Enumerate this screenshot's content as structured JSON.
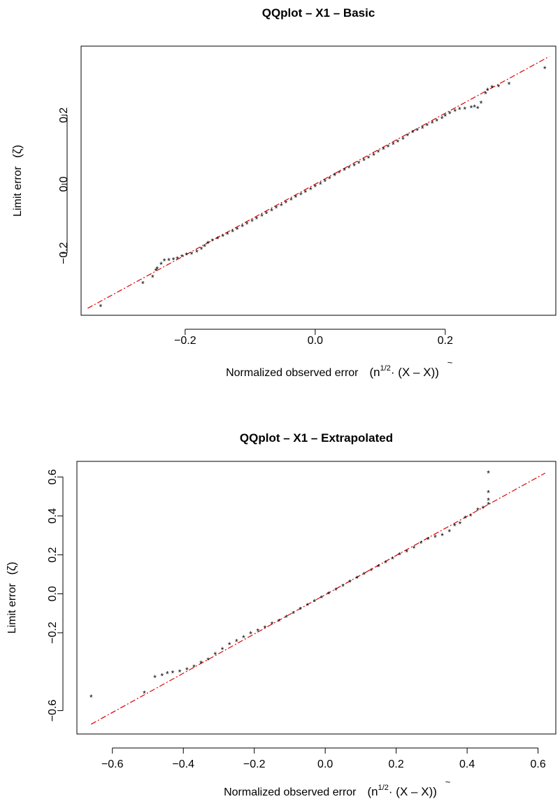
{
  "chart_data": [
    {
      "type": "scatter",
      "title": "QQplot – X1 – Basic",
      "xlabel": "Normalized observed error",
      "xlabel_math": {
        "open": "(n",
        "sup": "1/2",
        "mid": "· (X – ",
        "tilde": "X",
        "close": "))"
      },
      "ylabel": "Limit error",
      "ylabel_symbol": "(ζ)",
      "xlim": [
        -0.36,
        0.37
      ],
      "ylim": [
        -0.38,
        0.4
      ],
      "x_ticks": [
        -0.2,
        0.0,
        0.2
      ],
      "x_tick_labels": [
        "−0.2",
        "0.0",
        "0.2"
      ],
      "y_ticks": [
        -0.2,
        0.0,
        0.2
      ],
      "y_tick_labels": [
        "−0.2",
        "0.0",
        "0.2"
      ],
      "grid": false,
      "reference_line": {
        "from": [
          -0.35,
          -0.36
        ],
        "to": [
          0.36,
          0.37
        ],
        "color": "#dd0000",
        "style": "dash-dot"
      },
      "points_color": "#000000",
      "points": [
        [
          -0.33,
          -0.355
        ],
        [
          -0.265,
          -0.288
        ],
        [
          -0.25,
          -0.27
        ],
        [
          -0.245,
          -0.25
        ],
        [
          -0.243,
          -0.245
        ],
        [
          -0.237,
          -0.232
        ],
        [
          -0.232,
          -0.222
        ],
        [
          -0.225,
          -0.221
        ],
        [
          -0.218,
          -0.219
        ],
        [
          -0.212,
          -0.216
        ],
        [
          -0.205,
          -0.21
        ],
        [
          -0.198,
          -0.205
        ],
        [
          -0.19,
          -0.203
        ],
        [
          -0.182,
          -0.197
        ],
        [
          -0.175,
          -0.189
        ],
        [
          -0.17,
          -0.18
        ],
        [
          -0.165,
          -0.171
        ],
        [
          -0.158,
          -0.164
        ],
        [
          -0.15,
          -0.158
        ],
        [
          -0.142,
          -0.151
        ],
        [
          -0.135,
          -0.145
        ],
        [
          -0.127,
          -0.138
        ],
        [
          -0.12,
          -0.131
        ],
        [
          -0.112,
          -0.123
        ],
        [
          -0.105,
          -0.116
        ],
        [
          -0.097,
          -0.107
        ],
        [
          -0.09,
          -0.1
        ],
        [
          -0.082,
          -0.092
        ],
        [
          -0.075,
          -0.085
        ],
        [
          -0.067,
          -0.077
        ],
        [
          -0.06,
          -0.069
        ],
        [
          -0.052,
          -0.062
        ],
        [
          -0.045,
          -0.054
        ],
        [
          -0.037,
          -0.046
        ],
        [
          -0.03,
          -0.038
        ],
        [
          -0.022,
          -0.031
        ],
        [
          -0.015,
          -0.023
        ],
        [
          -0.007,
          -0.015
        ],
        [
          0.0,
          -0.007
        ],
        [
          0.008,
          0.0
        ],
        [
          0.015,
          0.008
        ],
        [
          0.022,
          0.016
        ],
        [
          0.03,
          0.025
        ],
        [
          0.037,
          0.033
        ],
        [
          0.045,
          0.04
        ],
        [
          0.052,
          0.047
        ],
        [
          0.06,
          0.054
        ],
        [
          0.067,
          0.061
        ],
        [
          0.075,
          0.069
        ],
        [
          0.082,
          0.076
        ],
        [
          0.09,
          0.084
        ],
        [
          0.097,
          0.093
        ],
        [
          0.105,
          0.101
        ],
        [
          0.112,
          0.108
        ],
        [
          0.12,
          0.115
        ],
        [
          0.127,
          0.122
        ],
        [
          0.135,
          0.131
        ],
        [
          0.142,
          0.141
        ],
        [
          0.15,
          0.15
        ],
        [
          0.157,
          0.156
        ],
        [
          0.165,
          0.162
        ],
        [
          0.172,
          0.17
        ],
        [
          0.18,
          0.177
        ],
        [
          0.187,
          0.183
        ],
        [
          0.195,
          0.19
        ],
        [
          0.2,
          0.197
        ],
        [
          0.207,
          0.205
        ],
        [
          0.215,
          0.212
        ],
        [
          0.222,
          0.217
        ],
        [
          0.23,
          0.218
        ],
        [
          0.24,
          0.222
        ],
        [
          0.245,
          0.224
        ],
        [
          0.25,
          0.22
        ],
        [
          0.255,
          0.235
        ],
        [
          0.262,
          0.262
        ],
        [
          0.265,
          0.272
        ],
        [
          0.272,
          0.28
        ],
        [
          0.282,
          0.283
        ],
        [
          0.298,
          0.29
        ],
        [
          0.353,
          0.335
        ]
      ]
    },
    {
      "type": "scatter",
      "title": "QQplot – X1 – Extrapolated",
      "xlabel": "Normalized observed error",
      "xlabel_math": {
        "open": "(n",
        "sup": "1/2",
        "mid": "· (X – ",
        "tilde": "X",
        "close": "))"
      },
      "ylabel": "Limit error",
      "ylabel_symbol": "(ζ)",
      "xlim": [
        -0.7,
        0.65
      ],
      "ylim": [
        -0.72,
        0.68
      ],
      "x_ticks": [
        -0.6,
        -0.4,
        -0.2,
        0.0,
        0.2,
        0.4,
        0.6
      ],
      "x_tick_labels": [
        "−0.6",
        "−0.4",
        "−0.2",
        "0.0",
        "0.2",
        "0.4",
        "0.6"
      ],
      "y_ticks": [
        -0.6,
        -0.2,
        0.0,
        0.2,
        0.4,
        0.6
      ],
      "y_tick_labels": [
        "−0.6",
        "−0.2",
        "0.0",
        "0.2",
        "0.4",
        "0.6"
      ],
      "grid": false,
      "reference_line": {
        "from": [
          -0.66,
          -0.67
        ],
        "to": [
          0.62,
          0.62
        ],
        "color": "#dd0000",
        "style": "dash-dot"
      },
      "points_color": "#000000",
      "points": [
        [
          -0.66,
          -0.53
        ],
        [
          -0.51,
          -0.51
        ],
        [
          -0.48,
          -0.43
        ],
        [
          -0.46,
          -0.42
        ],
        [
          -0.445,
          -0.41
        ],
        [
          -0.43,
          -0.405
        ],
        [
          -0.41,
          -0.4
        ],
        [
          -0.39,
          -0.39
        ],
        [
          -0.37,
          -0.375
        ],
        [
          -0.35,
          -0.355
        ],
        [
          -0.33,
          -0.34
        ],
        [
          -0.31,
          -0.31
        ],
        [
          -0.29,
          -0.285
        ],
        [
          -0.27,
          -0.26
        ],
        [
          -0.25,
          -0.245
        ],
        [
          -0.23,
          -0.225
        ],
        [
          -0.21,
          -0.205
        ],
        [
          -0.19,
          -0.19
        ],
        [
          -0.17,
          -0.175
        ],
        [
          -0.15,
          -0.155
        ],
        [
          -0.13,
          -0.14
        ],
        [
          -0.11,
          -0.12
        ],
        [
          -0.09,
          -0.1
        ],
        [
          -0.07,
          -0.08
        ],
        [
          -0.05,
          -0.06
        ],
        [
          -0.03,
          -0.04
        ],
        [
          -0.01,
          -0.02
        ],
        [
          0.01,
          0.0
        ],
        [
          0.03,
          0.02
        ],
        [
          0.05,
          0.04
        ],
        [
          0.07,
          0.06
        ],
        [
          0.09,
          0.08
        ],
        [
          0.11,
          0.1
        ],
        [
          0.13,
          0.12
        ],
        [
          0.15,
          0.14
        ],
        [
          0.17,
          0.16
        ],
        [
          0.19,
          0.18
        ],
        [
          0.21,
          0.2
        ],
        [
          0.23,
          0.215
        ],
        [
          0.25,
          0.235
        ],
        [
          0.27,
          0.26
        ],
        [
          0.29,
          0.28
        ],
        [
          0.31,
          0.29
        ],
        [
          0.33,
          0.3
        ],
        [
          0.35,
          0.32
        ],
        [
          0.365,
          0.35
        ],
        [
          0.38,
          0.36
        ],
        [
          0.395,
          0.39
        ],
        [
          0.41,
          0.4
        ],
        [
          0.43,
          0.43
        ],
        [
          0.445,
          0.44
        ],
        [
          0.46,
          0.46
        ],
        [
          0.46,
          0.48
        ],
        [
          0.46,
          0.52
        ],
        [
          0.46,
          0.62
        ]
      ]
    }
  ]
}
